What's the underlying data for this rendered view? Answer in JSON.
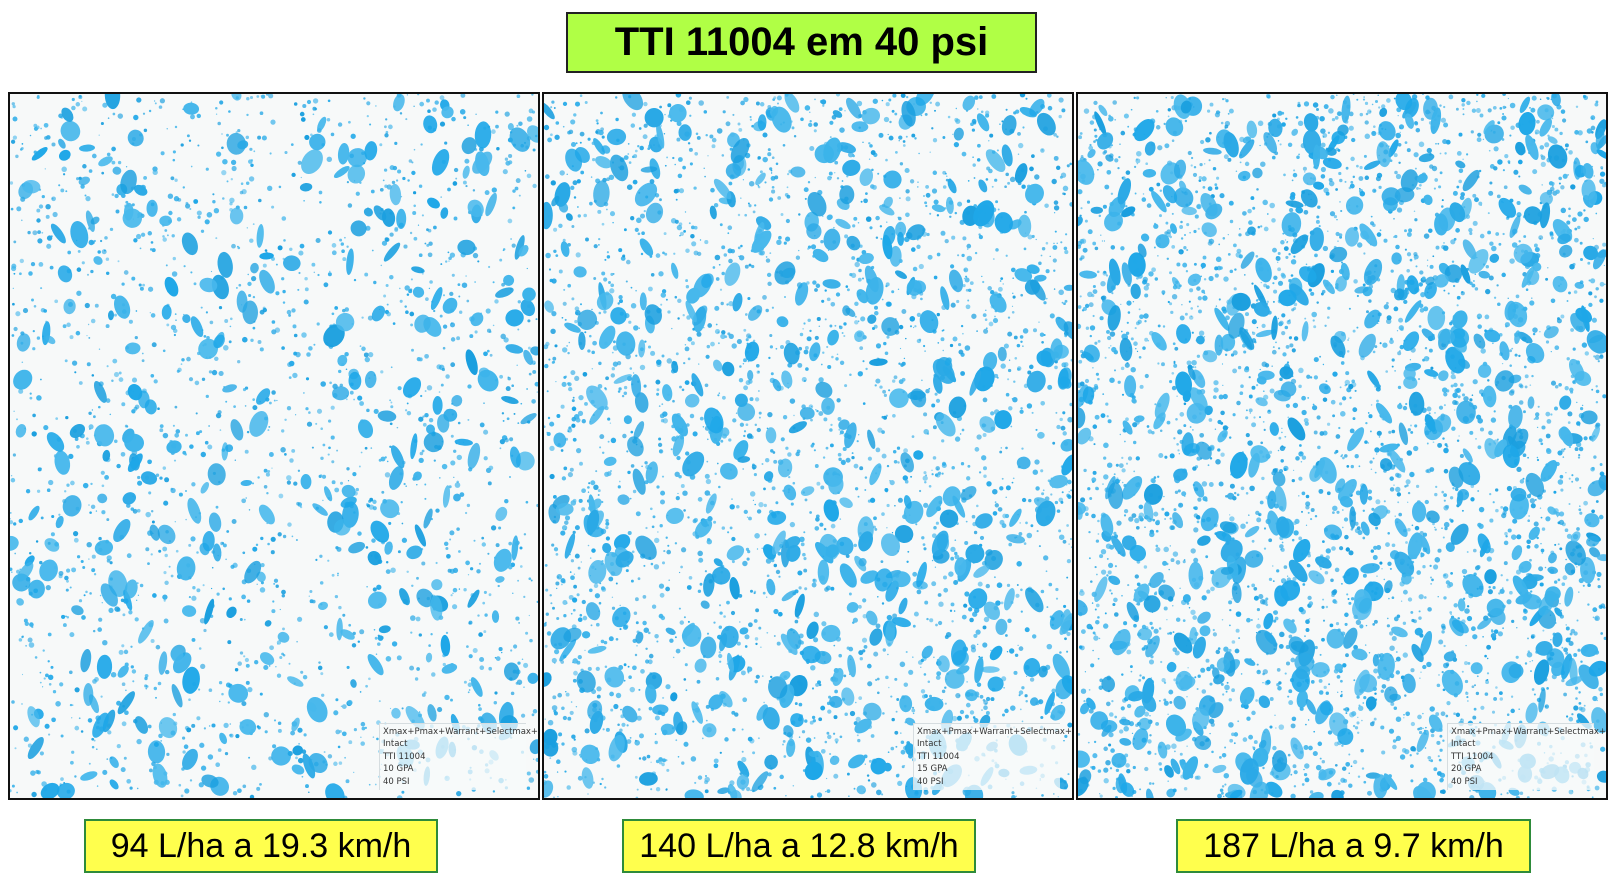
{
  "title": "TTI 11004 em 40 psi",
  "colors": {
    "title_bg": "#b0ff45",
    "caption_bg": "#ffff4d",
    "caption_border": "#2e8b3a",
    "droplet": "#1ea7e8",
    "paper": "#f7f9f9"
  },
  "cards": [
    {
      "caption": "94 L/ha a 19.3 km/h",
      "note_lines": [
        "Xmax+Pmax+Warrant+Selectmax+",
        "Intact",
        "TTI 11004",
        "10 GPA",
        "40 PSI"
      ],
      "density": 0.35
    },
    {
      "caption": "140 L/ha a 12.8 km/h",
      "note_lines": [
        "Xmax+Pmax+Warrant+Selectmax+",
        "Intact",
        "TTI 11004",
        "15 GPA",
        "40 PSI"
      ],
      "density": 0.65
    },
    {
      "caption": "187 L/ha a 9.7 km/h",
      "note_lines": [
        "Xmax+Pmax+Warrant+Selectmax+",
        "Intact",
        "TTI 11004",
        "20 GPA",
        "40 PSI"
      ],
      "density": 0.9
    }
  ]
}
